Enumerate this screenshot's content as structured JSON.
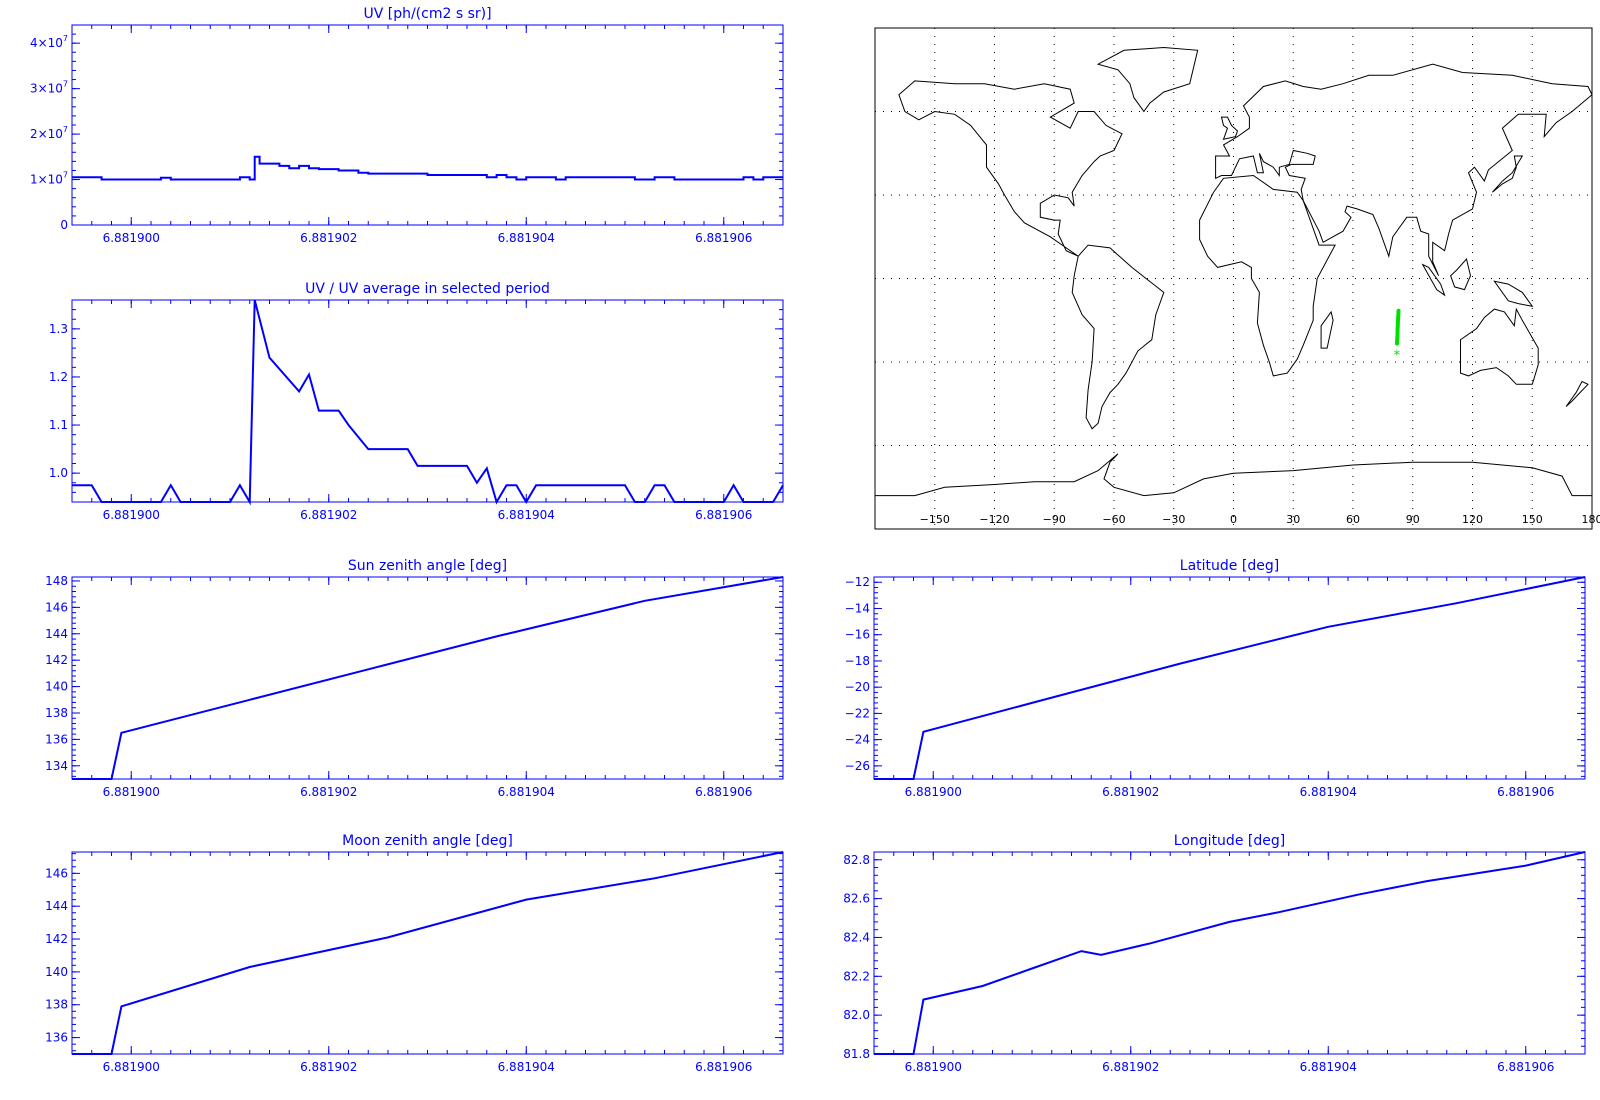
{
  "colors": {
    "axis": "#0000ff",
    "line": "#0000ff",
    "map_outline": "#000000",
    "map_grid": "#000000",
    "track": "#00e000",
    "background": "#ffffff"
  },
  "chart_data": [
    {
      "id": "uv",
      "type": "line",
      "step": true,
      "title": "UV [ph/(cm2 s sr)]",
      "xlim": [
        6.8818994,
        6.8819066
      ],
      "ylim": [
        0,
        44000000
      ],
      "xticks": [
        6.8819,
        6.881902,
        6.881904,
        6.881906
      ],
      "xtick_labels": [
        "6.881900",
        "6.881902",
        "6.881904",
        "6.881906"
      ],
      "yticks": [
        0,
        10000000,
        20000000,
        30000000,
        40000000
      ],
      "ytick_labels": [
        {
          "base": "0",
          "exp": ""
        },
        {
          "base": "1×10",
          "exp": "7"
        },
        {
          "base": "2×10",
          "exp": "7"
        },
        {
          "base": "3×10",
          "exp": "7"
        },
        {
          "base": "4×10",
          "exp": "7"
        }
      ],
      "series": [
        {
          "x": [
            6.8818994,
            6.8818997,
            6.8818998,
            6.8819002,
            6.8819003,
            6.8819004,
            6.8819005,
            6.8819009,
            6.881901,
            6.8819011,
            6.8819012,
            6.88190125,
            6.8819013,
            6.8819014,
            6.8819015,
            6.8819016,
            6.8819017,
            6.8819018,
            6.8819019,
            6.881902,
            6.8819021,
            6.8819022,
            6.8819023,
            6.8819024,
            6.8819025,
            6.8819026,
            6.8819027,
            6.8819028,
            6.8819029,
            6.881903,
            6.8819031,
            6.8819032,
            6.8819033,
            6.8819034,
            6.8819035,
            6.8819036,
            6.8819037,
            6.8819038,
            6.8819039,
            6.881904,
            6.8819041,
            6.8819042,
            6.8819043,
            6.8819044,
            6.8819045,
            6.881905,
            6.8819051,
            6.8819052,
            6.8819053,
            6.8819054,
            6.8819055,
            6.881906,
            6.8819061,
            6.8819062,
            6.8819063,
            6.8819064,
            6.8819065,
            6.8819066
          ],
          "y": [
            10500000,
            10000000,
            10000000,
            10000000,
            10400000,
            10000000,
            10000000,
            10000000,
            10000000,
            10500000,
            10000000,
            15000000,
            13500000,
            13500000,
            13000000,
            12500000,
            13000000,
            12500000,
            12300000,
            12300000,
            12000000,
            12000000,
            11500000,
            11300000,
            11300000,
            11300000,
            11300000,
            11300000,
            11300000,
            11000000,
            11000000,
            11000000,
            11000000,
            11000000,
            11000000,
            10500000,
            11000000,
            10500000,
            10000000,
            10500000,
            10500000,
            10500000,
            10000000,
            10500000,
            10500000,
            10500000,
            10000000,
            10000000,
            10500000,
            10500000,
            10000000,
            10000000,
            10000000,
            10500000,
            10000000,
            10500000,
            10500000,
            10500000
          ]
        }
      ]
    },
    {
      "id": "ratio",
      "type": "line",
      "title": "UV / UV average in selected period",
      "xlim": [
        6.8818994,
        6.8819066
      ],
      "ylim": [
        0.94,
        1.36
      ],
      "xticks": [
        6.8819,
        6.881902,
        6.881904,
        6.881906
      ],
      "xtick_labels": [
        "6.881900",
        "6.881902",
        "6.881904",
        "6.881906"
      ],
      "yticks": [
        1.0,
        1.1,
        1.2,
        1.3
      ],
      "ytick_labels": [
        "1.0",
        "1.1",
        "1.2",
        "1.3"
      ],
      "series": [
        {
          "x": [
            6.8818994,
            6.8818996,
            6.8818997,
            6.8819003,
            6.8819004,
            6.8819005,
            6.881901,
            6.8819011,
            6.8819012,
            6.88190125,
            6.8819014,
            6.8819017,
            6.8819018,
            6.8819019,
            6.8819021,
            6.8819022,
            6.8819024,
            6.8819028,
            6.8819029,
            6.8819034,
            6.8819035,
            6.8819036,
            6.8819037,
            6.8819038,
            6.8819039,
            6.881904,
            6.8819041,
            6.881905,
            6.8819051,
            6.8819052,
            6.8819053,
            6.8819054,
            6.8819055,
            6.8819058,
            6.8819059,
            6.881906,
            6.8819061,
            6.8819062,
            6.8819065,
            6.8819066
          ],
          "y": [
            0.975,
            0.975,
            0.94,
            0.94,
            0.975,
            0.94,
            0.94,
            0.975,
            0.94,
            1.36,
            1.24,
            1.17,
            1.205,
            1.13,
            1.13,
            1.1,
            1.05,
            1.05,
            1.015,
            1.015,
            0.98,
            1.01,
            0.94,
            0.975,
            0.975,
            0.94,
            0.975,
            0.975,
            0.94,
            0.94,
            0.975,
            0.975,
            0.94,
            0.94,
            0.94,
            0.94,
            0.975,
            0.94,
            0.94,
            0.975
          ]
        }
      ]
    },
    {
      "id": "sun",
      "type": "line",
      "title": "Sun zenith angle [deg]",
      "xlim": [
        6.8818994,
        6.8819066
      ],
      "ylim": [
        133,
        148.3
      ],
      "xticks": [
        6.8819,
        6.881902,
        6.881904,
        6.881906
      ],
      "xtick_labels": [
        "6.881900",
        "6.881902",
        "6.881904",
        "6.881906"
      ],
      "yticks": [
        134,
        136,
        138,
        140,
        142,
        144,
        146,
        148
      ],
      "ytick_labels": [
        "134",
        "136",
        "138",
        "140",
        "142",
        "144",
        "146",
        "148"
      ],
      "series": [
        {
          "x": [
            6.8818994,
            6.8818998,
            6.8818999,
            6.8819012,
            6.8819025,
            6.8819037,
            6.8819052,
            6.8819066
          ],
          "y": [
            133,
            133,
            136.5,
            139,
            141.5,
            143.8,
            146.5,
            148.3
          ]
        }
      ]
    },
    {
      "id": "latitude",
      "type": "line",
      "title": "Latitude [deg]",
      "xlim": [
        6.8818994,
        6.8819066
      ],
      "ylim": [
        -27,
        -11.6
      ],
      "xticks": [
        6.8819,
        6.881902,
        6.881904,
        6.881906
      ],
      "xtick_labels": [
        "6.881900",
        "6.881902",
        "6.881904",
        "6.881906"
      ],
      "yticks": [
        -26,
        -24,
        -22,
        -20,
        -18,
        -16,
        -14,
        -12
      ],
      "ytick_labels": [
        "−26",
        "−24",
        "−22",
        "−20",
        "−18",
        "−16",
        "−14",
        "−12"
      ],
      "series": [
        {
          "x": [
            6.8818994,
            6.8818998,
            6.8818999,
            6.881901,
            6.8819025,
            6.881904,
            6.8819053,
            6.8819066
          ],
          "y": [
            -27,
            -27,
            -23.4,
            -21.2,
            -18.2,
            -15.4,
            -13.6,
            -11.6
          ]
        }
      ]
    },
    {
      "id": "moon",
      "type": "line",
      "title": "Moon zenith angle [deg]",
      "xlim": [
        6.8818994,
        6.8819066
      ],
      "ylim": [
        135,
        147.3
      ],
      "xticks": [
        6.8819,
        6.881902,
        6.881904,
        6.881906
      ],
      "xtick_labels": [
        "6.881900",
        "6.881902",
        "6.881904",
        "6.881906"
      ],
      "yticks": [
        136,
        138,
        140,
        142,
        144,
        146
      ],
      "ytick_labels": [
        "136",
        "138",
        "140",
        "142",
        "144",
        "146"
      ],
      "series": [
        {
          "x": [
            6.8818994,
            6.8818998,
            6.8818999,
            6.8819012,
            6.8819026,
            6.881904,
            6.8819053,
            6.8819066
          ],
          "y": [
            135,
            135,
            137.9,
            140.3,
            142.1,
            144.4,
            145.7,
            147.3
          ]
        }
      ]
    },
    {
      "id": "longitude",
      "type": "line",
      "title": "Longitude [deg]",
      "xlim": [
        6.8818994,
        6.8819066
      ],
      "ylim": [
        81.8,
        82.84
      ],
      "xticks": [
        6.8819,
        6.881902,
        6.881904,
        6.881906
      ],
      "xtick_labels": [
        "6.881900",
        "6.881902",
        "6.881904",
        "6.881906"
      ],
      "yticks": [
        81.8,
        82.0,
        82.2,
        82.4,
        82.6,
        82.8
      ],
      "ytick_labels": [
        "81.8",
        "82.0",
        "82.2",
        "82.4",
        "82.6",
        "82.8"
      ],
      "series": [
        {
          "x": [
            6.8818994,
            6.8818998,
            6.8818999,
            6.8819005,
            6.881901,
            6.8819015,
            6.8819017,
            6.8819022,
            6.881903,
            6.8819035,
            6.8819043,
            6.881905,
            6.8819055,
            6.881906,
            6.8819066
          ],
          "y": [
            81.8,
            81.8,
            82.08,
            82.15,
            82.24,
            82.33,
            82.31,
            82.37,
            82.48,
            82.53,
            82.62,
            82.69,
            82.73,
            82.77,
            82.84
          ]
        }
      ]
    },
    {
      "id": "map",
      "type": "scatter",
      "xlim": [
        -180,
        180
      ],
      "ylim": [
        -90,
        90
      ],
      "xticks": [
        -150,
        -120,
        -90,
        -60,
        -30,
        0,
        30,
        60,
        90,
        120,
        150,
        180
      ],
      "xtick_labels": [
        "−150",
        "−120",
        "−90",
        "−60",
        "−30",
        "0",
        "30",
        "60",
        "90",
        "120",
        "150",
        "180"
      ],
      "grid": true,
      "track": {
        "lon": [
          82.08,
          82.15,
          82.24,
          82.33,
          82.37,
          82.48,
          82.53,
          82.62,
          82.69,
          82.77,
          82.84
        ],
        "lat": [
          -23.4,
          -22.4,
          -21.2,
          -20.2,
          -18.2,
          -17.0,
          -15.4,
          -14.6,
          -13.6,
          -12.6,
          -11.6
        ]
      },
      "current_position": {
        "lon": 82.0,
        "lat": -27.0,
        "marker": "*"
      }
    }
  ]
}
